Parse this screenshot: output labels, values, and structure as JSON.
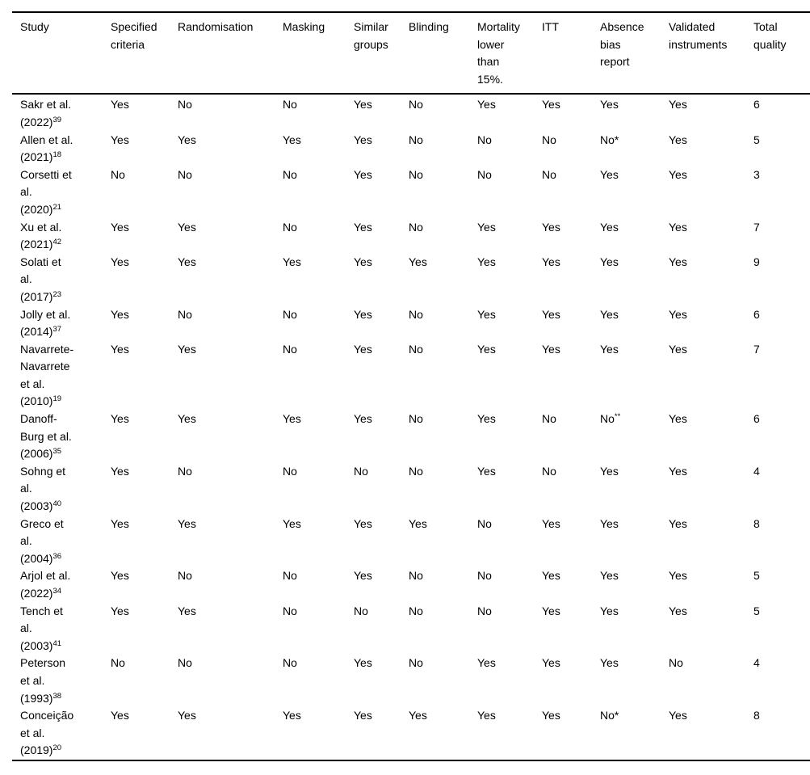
{
  "table": {
    "columns": [
      {
        "id": "study",
        "label": "Study",
        "lines": [
          "Study"
        ]
      },
      {
        "id": "specified-criteria",
        "label": "Specified criteria",
        "lines": [
          "Specified",
          "criteria"
        ]
      },
      {
        "id": "randomisation",
        "label": "Randomisation",
        "lines": [
          "Randomisation"
        ]
      },
      {
        "id": "masking",
        "label": "Masking",
        "lines": [
          "Masking"
        ]
      },
      {
        "id": "similar-groups",
        "label": "Similar groups",
        "lines": [
          "Similar",
          "groups"
        ]
      },
      {
        "id": "blinding",
        "label": "Blinding",
        "lines": [
          "Blinding"
        ]
      },
      {
        "id": "mortality-lower-than-15",
        "label": "Mortality lower than 15%.",
        "lines": [
          "Mortality",
          "lower",
          "than",
          "15%."
        ]
      },
      {
        "id": "itt",
        "label": "ITT",
        "lines": [
          "ITT"
        ]
      },
      {
        "id": "absence-bias-report",
        "label": "Absence bias report",
        "lines": [
          "Absence",
          "bias",
          "report"
        ]
      },
      {
        "id": "validated-instruments",
        "label": "Validated instruments",
        "lines": [
          "Validated",
          "instruments"
        ]
      },
      {
        "id": "total-quality",
        "label": "Total quality",
        "lines": [
          "Total",
          "quality"
        ]
      }
    ],
    "rows": [
      {
        "study": "Sakr et al. (2022)^39",
        "study_lines": [
          "Sakr et al.",
          "(2022)^39"
        ],
        "values": [
          "Yes",
          "No",
          "No",
          "Yes",
          "No",
          "Yes",
          "Yes",
          "Yes",
          "Yes"
        ],
        "total": "6"
      },
      {
        "study": "Allen et al. (2021)^18",
        "study_lines": [
          "Allen et al.",
          "(2021)^18"
        ],
        "values": [
          "Yes",
          "Yes",
          "Yes",
          "Yes",
          "No",
          "No",
          "No",
          "No*",
          "Yes"
        ],
        "total": "5"
      },
      {
        "study": "Corsetti et al. (2020)^21",
        "study_lines": [
          "Corsetti et",
          "al.",
          "(2020)^21"
        ],
        "values": [
          "No",
          "No",
          "No",
          "Yes",
          "No",
          "No",
          "No",
          "Yes",
          "Yes"
        ],
        "total": "3"
      },
      {
        "study": "Xu et al. (2021)^42",
        "study_lines": [
          "Xu et al.",
          "(2021)^42"
        ],
        "values": [
          "Yes",
          "Yes",
          "No",
          "Yes",
          "No",
          "Yes",
          "Yes",
          "Yes",
          "Yes"
        ],
        "total": "7"
      },
      {
        "study": "Solati et al. (2017)^23",
        "study_lines": [
          "Solati et",
          "al.",
          "(2017)^23"
        ],
        "values": [
          "Yes",
          "Yes",
          "Yes",
          "Yes",
          "Yes",
          "Yes",
          "Yes",
          "Yes",
          "Yes"
        ],
        "total": "9"
      },
      {
        "study": "Jolly et al. (2014)^37",
        "study_lines": [
          "Jolly et al.",
          "(2014)^37"
        ],
        "values": [
          "Yes",
          "No",
          "No",
          "Yes",
          "No",
          "Yes",
          "Yes",
          "Yes",
          "Yes"
        ],
        "total": "6"
      },
      {
        "study": "Navarrete-Navarrete et al. (2010)^19",
        "study_lines": [
          "Navarrete-",
          "Navarrete",
          "et al.",
          "(2010)^19"
        ],
        "values": [
          "Yes",
          "Yes",
          "No",
          "Yes",
          "No",
          "Yes",
          "Yes",
          "Yes",
          "Yes"
        ],
        "total": "7"
      },
      {
        "study": "Danoff-Burg et al. (2006)^35",
        "study_lines": [
          "Danoff-",
          "Burg et al.",
          "(2006)^35"
        ],
        "values": [
          "Yes",
          "Yes",
          "Yes",
          "Yes",
          "No",
          "Yes",
          "No",
          "No^**",
          "Yes"
        ],
        "total": "6"
      },
      {
        "study": "Sohng et al. (2003)^40",
        "study_lines": [
          "Sohng et",
          "al.",
          "(2003)^40"
        ],
        "values": [
          "Yes",
          "No",
          "No",
          "No",
          "No",
          "Yes",
          "No",
          "Yes",
          "Yes"
        ],
        "total": "4"
      },
      {
        "study": "Greco et al. (2004)^36",
        "study_lines": [
          "Greco et",
          "al.",
          "(2004)^36"
        ],
        "values": [
          "Yes",
          "Yes",
          "Yes",
          "Yes",
          "Yes",
          "No",
          "Yes",
          "Yes",
          "Yes"
        ],
        "total": "8"
      },
      {
        "study": "Arjol et al. (2022)^34",
        "study_lines": [
          "Arjol et al.",
          "(2022)^34"
        ],
        "values": [
          "Yes",
          "No",
          "No",
          "Yes",
          "No",
          "No",
          "Yes",
          "Yes",
          "Yes"
        ],
        "total": "5"
      },
      {
        "study": "Tench et al. (2003)^41",
        "study_lines": [
          "Tench et",
          "al.",
          "(2003)^41"
        ],
        "values": [
          "Yes",
          "Yes",
          "No",
          "No",
          "No",
          "No",
          "Yes",
          "Yes",
          "Yes"
        ],
        "total": "5"
      },
      {
        "study": "Peterson et al. (1993)^38",
        "study_lines": [
          "Peterson",
          "et al.",
          "(1993)^38"
        ],
        "values": [
          "No",
          "No",
          "No",
          "Yes",
          "No",
          "Yes",
          "Yes",
          "Yes",
          "No"
        ],
        "total": "4"
      },
      {
        "study": "Conceição et al. (2019)^20",
        "study_lines": [
          "Conceição",
          "et al.",
          "(2019)^20"
        ],
        "values": [
          "Yes",
          "Yes",
          "Yes",
          "Yes",
          "Yes",
          "Yes",
          "Yes",
          "No*",
          "Yes"
        ],
        "total": "8"
      }
    ]
  }
}
